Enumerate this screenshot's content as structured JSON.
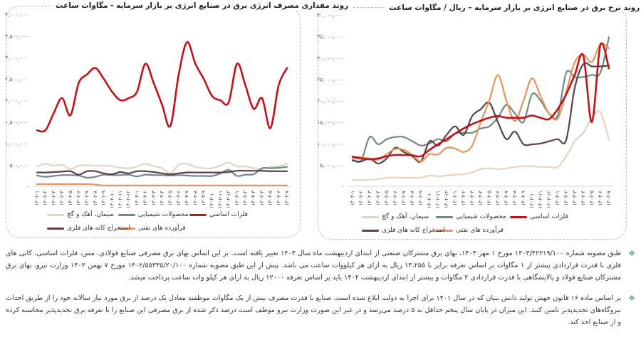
{
  "colors": {
    "basic_metals": "#c0121a",
    "chemicals": "#6f8a80",
    "cement": "#e4d5c3",
    "oil_products": "#e39560",
    "metal_mining": "#5b4049",
    "bullet": "#6fa08a"
  },
  "chart_data": [
    {
      "type": "line",
      "title": "روند مقداری مصرف انرژی برق در صنایع انرژی بر بازار سرمایه  - مگاوات ساعت",
      "ylim": [
        0,
        4000000
      ],
      "yticks": [
        0,
        500000,
        1000000,
        1500000,
        2000000,
        2500000,
        3000000,
        3500000,
        4000000
      ],
      "ytick_labels": [
        "-",
        "۵۰۰,۰۰۰",
        "۱,۰۰۰,۰۰۰",
        "۱,۵۰۰,۰۰۰",
        "۲,۰۰۰,۰۰۰",
        "۲,۵۰۰,۰۰۰",
        "۳,۰۰۰,۰۰۰",
        "۳,۵۰۰,۰۰۰",
        "۴,۰۰۰,۰۰۰"
      ],
      "grid": false,
      "legend": "bottom",
      "categories": [
        "۱۴۰۲-۱",
        "۱۴۰۲-۲",
        "۱۴۰۲-۳",
        "۱۴۰۲-۴",
        "۱۴۰۲-۵",
        "۱۴۰۲-۶",
        "۱۴۰۲-۷",
        "۱۴۰۲-۸",
        "۱۴۰۲-۹",
        "۱۴۰۲-۱۰",
        "۱۴۰۲-۱۱",
        "۱۴۰۲-۱۲",
        "۱۴۰۳-۱",
        "۱۴۰۳-۲",
        "۱۴۰۳-۳",
        "۱۴۰۳-۴",
        "۱۴۰۳-۵",
        "۱۴۰۳-۶",
        "۱۴۰۳-۷",
        "۱۴۰۳-۸",
        "۱۴۰۳-۹",
        "۱۴۰۳-۱۰",
        "۱۴۰۳-۱۱",
        "۱۴۰۳-۱۲",
        "۱۴۰۴-۱",
        "۱۴۰۴-۲",
        "۱۴۰۴-۳",
        "۱۴۰۴-۴",
        "۱۴۰۴-۵",
        "۱۴۰۴-۶",
        "۱۴۰۴-۷"
      ],
      "series": [
        {
          "name": "سیمان، آهک و گچ",
          "key": "cement",
          "values": [
            470000,
            520000,
            480000,
            500000,
            400000,
            480000,
            490000,
            480000,
            480000,
            470000,
            430000,
            420000,
            460000,
            520000,
            470000,
            420000,
            300000,
            500000,
            520000,
            450000,
            420000,
            420000,
            480000,
            550000,
            460000,
            460000,
            420000,
            400000,
            450000,
            470000,
            520000
          ]
        },
        {
          "name": "محصولات شیمیایی",
          "key": "chemicals",
          "values": [
            250000,
            220000,
            240000,
            260000,
            260000,
            250000,
            200000,
            220000,
            270000,
            260000,
            260000,
            270000,
            230000,
            270000,
            260000,
            260000,
            250000,
            260000,
            250000,
            240000,
            240000,
            240000,
            300000,
            380000,
            240000,
            270000,
            280000,
            420000,
            420000,
            430000,
            450000
          ]
        },
        {
          "name": "استخراج کانه های فلزی",
          "key": "metal_mining",
          "values": [
            320000,
            320000,
            330000,
            340000,
            350000,
            270000,
            350000,
            350000,
            300000,
            280000,
            330000,
            300000,
            350000,
            350000,
            330000,
            300000,
            280000,
            300000,
            320000,
            320000,
            320000,
            320000,
            320000,
            330000,
            360000,
            360000,
            360000,
            360000,
            350000,
            350000,
            350000
          ]
        },
        {
          "name": "فرآورده های نفتی",
          "key": "oil_products",
          "values": [
            50000,
            50000,
            50000,
            50000,
            50000,
            50000,
            50000,
            40000,
            20000,
            20000,
            20000,
            20000,
            20000,
            20000,
            20000,
            20000,
            20000,
            20000,
            20000,
            20000,
            20000,
            20000,
            20000,
            20000,
            20000,
            20000,
            20000,
            20000,
            20000,
            20000,
            20000
          ]
        },
        {
          "name": "فلزات اساسی",
          "key": "basic_metals",
          "values": [
            1300000,
            1300000,
            1700000,
            2050000,
            1650000,
            2400000,
            2600000,
            2750000,
            2500000,
            2200000,
            2000000,
            2050000,
            2200000,
            2850000,
            2400000,
            1900000,
            1400000,
            2600000,
            3350000,
            2850000,
            2500000,
            2100000,
            2000000,
            1950000,
            2850000,
            2350000,
            1800000,
            2050000,
            1350000,
            2350000,
            2750000
          ]
        }
      ]
    },
    {
      "type": "line",
      "title": "روند نرخ برق در صنایع انرژی بر بازار سرمایه – ریال / مگاوات ساعت",
      "ylim": [
        0,
        40000000
      ],
      "yticks": [
        0,
        5000000,
        10000000,
        15000000,
        20000000,
        25000000,
        30000000,
        35000000,
        40000000
      ],
      "ytick_labels": [
        "-",
        "۵,۰۰۰,۰۰۰",
        "۱۰,۰۰۰,۰۰۰",
        "۱۵,۰۰۰,۰۰۰",
        "۲۰,۰۰۰,۰۰۰",
        "۲۵,۰۰۰,۰۰۰",
        "۳۰,۰۰۰,۰۰۰",
        "۳۵,۰۰۰,۰۰۰",
        "۴۰,۰۰۰,۰۰۰"
      ],
      "grid": false,
      "legend": "bottom",
      "categories": [
        "۱۴۰۲-۱",
        "۱۴۰۲-۲",
        "۱۴۰۲-۳",
        "۱۴۰۲-۴",
        "۱۴۰۲-۵",
        "۱۴۰۲-۶",
        "۱۴۰۲-۷",
        "۱۴۰۲-۸",
        "۱۴۰۲-۹",
        "۱۴۰۲-۱۰",
        "۱۴۰۲-۱۱",
        "۱۴۰۲-۱۲",
        "۱۴۰۳-۱",
        "۱۴۰۳-۲",
        "۱۴۰۳-۳",
        "۱۴۰۳-۴",
        "۱۴۰۳-۵",
        "۱۴۰۳-۶",
        "۱۴۰۳-۷",
        "۱۴۰۳-۸",
        "۱۴۰۳-۹",
        "۱۴۰۳-۱۰",
        "۱۴۰۳-۱۱",
        "۱۴۰۳-۱۲",
        "۱۴۰۴-۱",
        "۱۴۰۴-۲",
        "۱۴۰۴-۳",
        "۱۴۰۴-۴",
        "۱۴۰۴-۵",
        "۱۴۰۴-۶",
        "۱۴۰۴-۷"
      ],
      "series": [
        {
          "name": "سیمان، آهک و گچ",
          "key": "cement",
          "values": [
            1500000,
            1500000,
            1500000,
            1700000,
            2000000,
            2000000,
            2000000,
            2000000,
            2000000,
            2500000,
            2300000,
            2500000,
            2700000,
            2800000,
            3200000,
            4000000,
            4200000,
            4000000,
            4200000,
            4500000,
            4700000,
            4700000,
            4500000,
            4500000,
            4500000,
            7000000,
            10500000,
            12500000,
            16000000,
            17300000,
            10800000
          ]
        },
        {
          "name": "محصولات شیمیایی",
          "key": "chemicals",
          "values": [
            6200000,
            6000000,
            11500000,
            9800000,
            11000000,
            11500000,
            11500000,
            10500000,
            9500000,
            10000000,
            11000000,
            10500000,
            12300000,
            12500000,
            12500000,
            13500000,
            14000000,
            16000000,
            19000000,
            17000000,
            15000000,
            21500000,
            20000000,
            17000000,
            16500000,
            26500000,
            25500000,
            25500000,
            26000000,
            26500000,
            34800000
          ]
        },
        {
          "name": "استخراج کانه های فلزی",
          "key": "metal_mining",
          "values": [
            6000000,
            5800000,
            6500000,
            5300000,
            6500000,
            9000000,
            8000000,
            7000000,
            5800000,
            10500000,
            9500000,
            12000000,
            14000000,
            12000000,
            16400000,
            18000000,
            19500000,
            15000000,
            11000000,
            12800000,
            9800000,
            9800000,
            10000000,
            10500000,
            11000000,
            10800000,
            23000000,
            28500000,
            28000000,
            28000000,
            28200000
          ]
        },
        {
          "name": "فرآورده های نفتی",
          "key": "oil_products",
          "values": [
            7000000,
            6800000,
            6500000,
            6200000,
            7500000,
            8700000,
            8500000,
            7300000,
            5800000,
            7500000,
            7400000,
            9000000,
            8800000,
            8000000,
            9500000,
            15000000,
            20000000,
            26000000,
            20000000,
            15200000,
            20000000,
            25200000,
            21000000,
            17000000,
            15800000,
            22000000,
            29000000,
            30700000,
            29000000,
            33200000,
            32200000
          ]
        },
        {
          "name": "فلزات اساسی",
          "key": "basic_metals",
          "values": [
            6800000,
            6500000,
            6300000,
            6500000,
            7000000,
            7300000,
            7300000,
            7200000,
            7000000,
            8500000,
            9800000,
            11000000,
            12300000,
            13500000,
            14500000,
            15300000,
            16000000,
            16400000,
            16000000,
            16000000,
            16000000,
            16500000,
            16000000,
            15700000,
            18000000,
            21500000,
            26000000,
            30500000,
            15000000,
            33000000,
            27500000
          ]
        }
      ]
    }
  ],
  "notes": [
    "طبق مصوبه شماره ۱۴۰۳/۴۲۲۱۹/۱۰۰ مورخ ۱ مهر ۱۴۰۳، بهای برق مشترکان صنعتی از ابتدای اردیبهشت ماه سال ۱۴۰۳ تغییر یافته است. بر این اساس بهای برق مصرفی صنایع فولادی، مس، فلزات اساسی، کانی های فلزی با قدرت قراردادی بیشتر از ۱ مگاوات بر اساس تعرفه برابر با ۱۳،۲۵۵ ریال به ازای هر کیلووات ساعت می باشد. پیش از این طبق مصوبه شماره ۱۴۰۲/۵۵۳۳۵/۲۰/۱۰۰ مورخ ۷ بهمن ۱۴۰۲ وزارت نیرو، بهای برق مشترکان صنایع فولاد و پالایشگاهی با قدرت قراردادی ۲ مگاوات و بیشتر از ابتدای اردیبهشت ۱۴۰۲ باید بر اساس تعرفه ۱۲۰۰۰ ریال به ازای هر کیلو وات ساعت پرداخت میشد.",
    "بر اساس ماده ۱۶ قانون جهش تولید دانش بنیان که در سال ۱۴۰۱ برای اجرا به دولت ابلاغ شده است، صنایع با قدرت مصرف بیش از یک مگاوات موظفند معادل یک درصد از برق مورد نیاز سالانه خود را از طریق احداث نیروگاه‌های تجدیدپذیر تامین کنند. این میزان در پایان سال پنجم حداقل به ۵ درصد می‌رسد و در غیر این صورت وزارت نیرو موظف است درصد ذکر شده از برق مصرفی این صنایع را با تعرفه برق تجدیدپذیر محاسبه کرده و از صنایع اخذ کند."
  ],
  "bullet_icon": "❖"
}
